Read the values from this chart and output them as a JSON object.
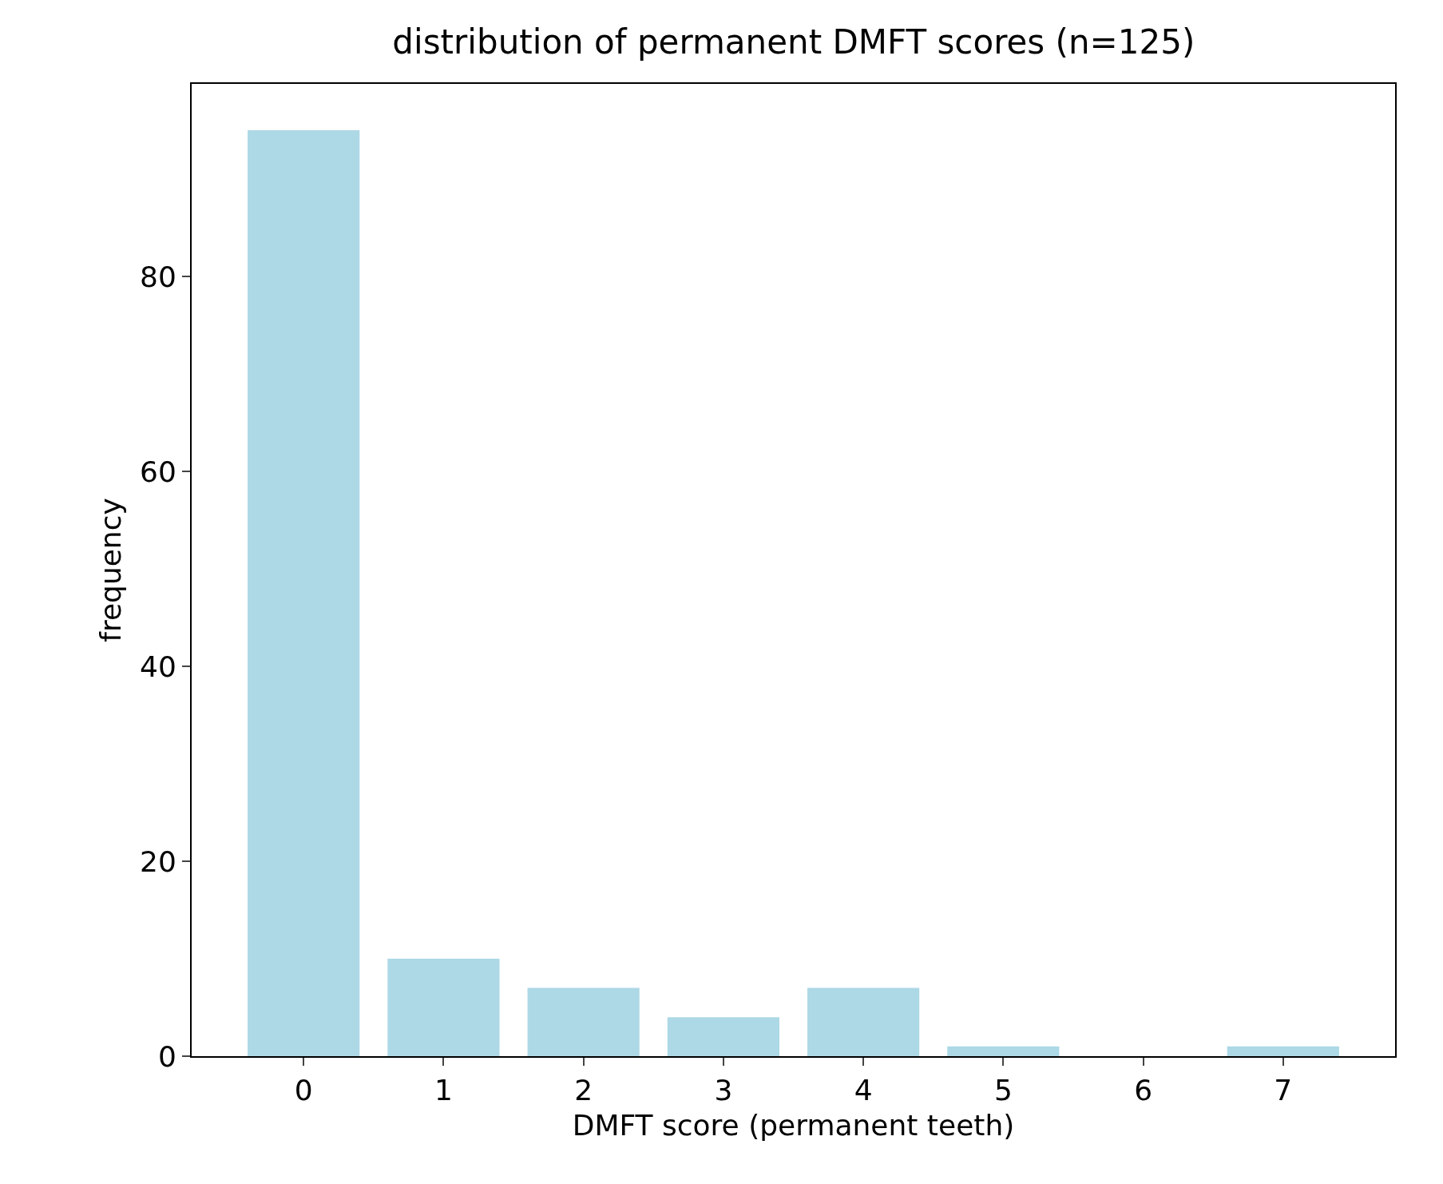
{
  "chart_data": {
    "type": "bar",
    "title": "distribution of permanent DMFT scores (n=125)",
    "xlabel": "DMFT score (permanent teeth)",
    "ylabel": "frequency",
    "x": [
      0,
      1,
      2,
      3,
      4,
      5,
      6,
      7
    ],
    "values": [
      95,
      10,
      7,
      4,
      7,
      1,
      0,
      1
    ],
    "color": "#add8e6",
    "xlim": [
      -0.8,
      7.8
    ],
    "xticks": [
      0,
      1,
      2,
      3,
      4,
      5,
      6,
      7
    ],
    "ylim": [
      0,
      99.75
    ],
    "yticks": [
      0,
      20,
      40,
      60,
      80
    ],
    "grid": false,
    "legend": false
  }
}
